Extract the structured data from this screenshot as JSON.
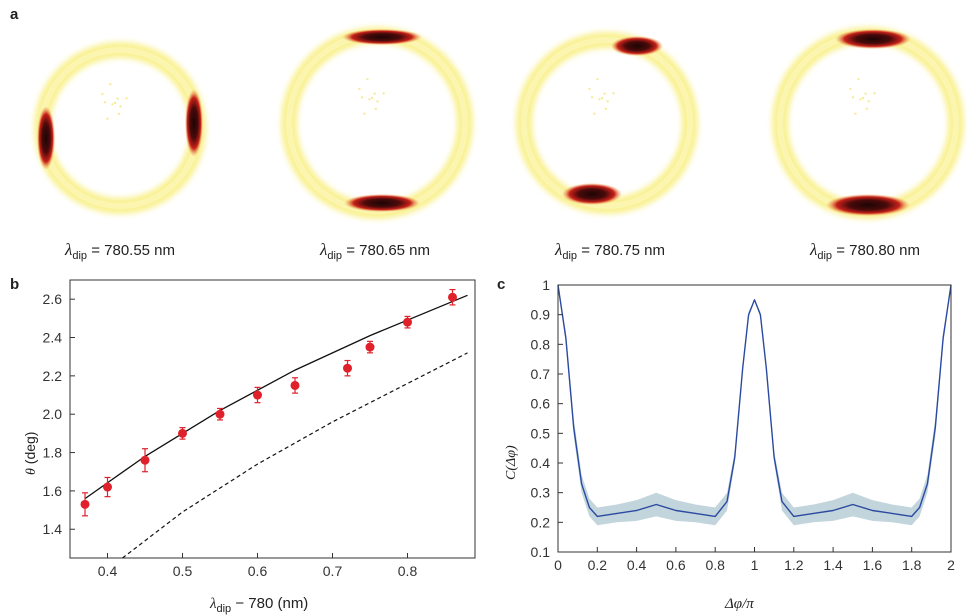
{
  "panels": {
    "a": "a",
    "b": "b",
    "c": "c"
  },
  "ring_images": [
    {
      "lambda_value": "780.55 nm",
      "lobes": "left-right"
    },
    {
      "lambda_value": "780.65 nm",
      "lobes": "top-bottom"
    },
    {
      "lambda_value": "780.75 nm",
      "lobes": "top-bottom"
    },
    {
      "lambda_value": "780.80 nm",
      "lobes": "top-bottom"
    }
  ],
  "lambda_symbol": "λ",
  "lambda_sub": "dip",
  "colors": {
    "ring_outer": "#f7ec6a",
    "ring_inner": "#fbf6b8",
    "hot": "#2a0808",
    "hot_mid": "#c8211a",
    "marker": "#e0202a",
    "fit_line": "#111111",
    "curve_c": "#2b4aa0",
    "band_c": "#8fb3c1"
  },
  "chart_data": [
    {
      "type": "scatter",
      "panel": "b",
      "xlabel_prefix": "λ",
      "xlabel_sub": "dip",
      "xlabel_suffix": " − 780 (nm)",
      "ylabel_symbol": "θ",
      "ylabel_suffix": " (deg)",
      "xlim": [
        0.35,
        0.89
      ],
      "ylim": [
        1.25,
        2.7
      ],
      "x_ticks": [
        "0.4",
        "0.5",
        "0.6",
        "0.7",
        "0.8"
      ],
      "y_ticks": [
        "1.4",
        "1.6",
        "1.8",
        "2.0",
        "2.2",
        "2.4",
        "2.6"
      ],
      "points": [
        {
          "x": 0.37,
          "y": 1.53,
          "err": 0.06
        },
        {
          "x": 0.4,
          "y": 1.62,
          "err": 0.05
        },
        {
          "x": 0.45,
          "y": 1.76,
          "err": 0.06
        },
        {
          "x": 0.5,
          "y": 1.9,
          "err": 0.03
        },
        {
          "x": 0.55,
          "y": 2.0,
          "err": 0.03
        },
        {
          "x": 0.6,
          "y": 2.1,
          "err": 0.04
        },
        {
          "x": 0.65,
          "y": 2.15,
          "err": 0.04
        },
        {
          "x": 0.72,
          "y": 2.24,
          "err": 0.04
        },
        {
          "x": 0.75,
          "y": 2.35,
          "err": 0.03
        },
        {
          "x": 0.8,
          "y": 2.48,
          "err": 0.03
        },
        {
          "x": 0.86,
          "y": 2.61,
          "err": 0.04
        }
      ],
      "fit_solid": {
        "x": [
          0.37,
          0.45,
          0.55,
          0.65,
          0.75,
          0.88
        ],
        "y": [
          1.56,
          1.78,
          2.02,
          2.23,
          2.41,
          2.62
        ]
      },
      "fit_dashed": {
        "x": [
          0.42,
          0.5,
          0.6,
          0.7,
          0.8,
          0.88
        ],
        "y": [
          1.25,
          1.49,
          1.74,
          1.96,
          2.16,
          2.32
        ]
      }
    },
    {
      "type": "line",
      "panel": "c",
      "xlabel": "Δφ/π",
      "ylabel": "C(Δφ)",
      "xlim": [
        0,
        2
      ],
      "ylim": [
        0.1,
        1.0
      ],
      "x_ticks": [
        "0",
        "0.2",
        "0.4",
        "0.6",
        "0.8",
        "1",
        "1.2",
        "1.4",
        "1.6",
        "1.8",
        "2"
      ],
      "y_ticks": [
        "0.1",
        "0.2",
        "0.3",
        "0.4",
        "0.5",
        "0.6",
        "0.7",
        "0.8",
        "0.9",
        "1"
      ],
      "x": [
        0.0,
        0.04,
        0.08,
        0.12,
        0.16,
        0.2,
        0.3,
        0.4,
        0.5,
        0.6,
        0.7,
        0.8,
        0.86,
        0.9,
        0.94,
        0.97,
        1.0,
        1.03,
        1.06,
        1.1,
        1.14,
        1.2,
        1.3,
        1.4,
        1.5,
        1.6,
        1.7,
        1.8,
        1.84,
        1.88,
        1.92,
        1.96,
        2.0
      ],
      "y": [
        1.0,
        0.82,
        0.52,
        0.33,
        0.25,
        0.22,
        0.23,
        0.24,
        0.26,
        0.24,
        0.23,
        0.22,
        0.27,
        0.42,
        0.72,
        0.9,
        0.95,
        0.9,
        0.72,
        0.42,
        0.27,
        0.22,
        0.23,
        0.24,
        0.26,
        0.24,
        0.23,
        0.22,
        0.25,
        0.33,
        0.52,
        0.82,
        1.0
      ],
      "band_halfwidth": [
        0,
        0.02,
        0.03,
        0.03,
        0.03,
        0.03,
        0.03,
        0.035,
        0.04,
        0.035,
        0.03,
        0.03,
        0.03,
        0.02,
        0.01,
        0.01,
        0,
        0.01,
        0.01,
        0.02,
        0.03,
        0.03,
        0.03,
        0.035,
        0.04,
        0.035,
        0.03,
        0.03,
        0.03,
        0.03,
        0.03,
        0.02,
        0
      ]
    }
  ]
}
